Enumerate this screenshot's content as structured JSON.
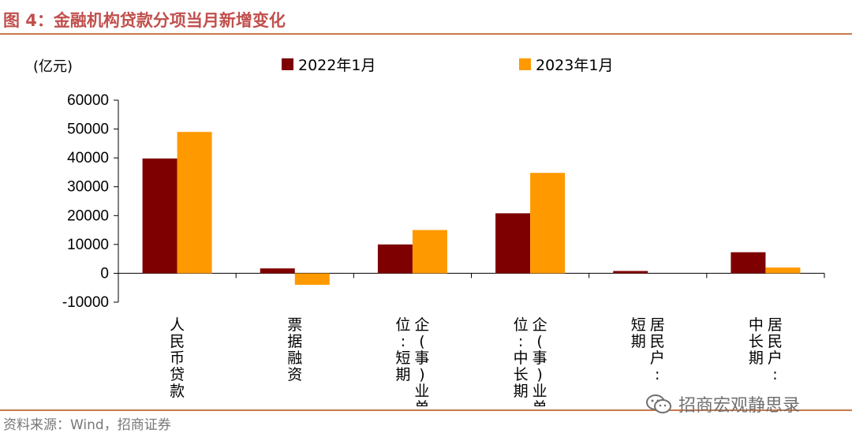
{
  "figure": {
    "title": "图 4：金融机构贷款分项当月新增变化",
    "source": "资料来源：Wind，招商证券",
    "watermark": "招商宏观静思录",
    "unit": "(亿元)"
  },
  "colors": {
    "series_2022": "#7f0000",
    "series_2023": "#ff9900",
    "title_red": "#c0504d",
    "rule": "#c8794b"
  },
  "icons": {
    "watermark": "wechat-icon"
  },
  "chart_data": {
    "type": "bar",
    "title": "金融机构贷款分项当月新增变化",
    "ylabel": "(亿元)",
    "xlabel": "",
    "ylim": [
      -10000,
      60000
    ],
    "yticks": [
      -10000,
      0,
      10000,
      20000,
      30000,
      40000,
      50000,
      60000
    ],
    "grid": false,
    "legend_position": "top",
    "categories": [
      "人民币贷款",
      "票据融资",
      "企(事)业单位:短期",
      "企(事)业单位:中长期",
      "居民户:短期",
      "居民户:中长期"
    ],
    "category_label_columns": [
      [
        "人民币贷款"
      ],
      [
        "票据融资"
      ],
      [
        "企(事)业单",
        "位:短期"
      ],
      [
        "企(事)业单",
        "位:中长期"
      ],
      [
        "居民户:",
        "短期"
      ],
      [
        "居民户:",
        "中长期"
      ]
    ],
    "series": [
      {
        "name": "2022年1月",
        "values": [
          39800,
          1700,
          10000,
          20800,
          800,
          7300
        ]
      },
      {
        "name": "2023年1月",
        "values": [
          49000,
          -4000,
          15000,
          34800,
          0,
          2000
        ]
      }
    ]
  }
}
